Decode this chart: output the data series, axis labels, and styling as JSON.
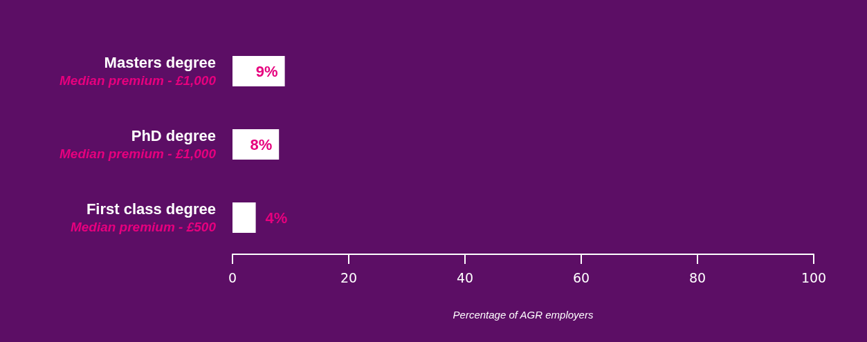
{
  "chart_data": {
    "type": "bar",
    "orientation": "horizontal",
    "xlabel": "Percentage of AGR employers",
    "categories": [
      "Masters degree\nMedian premium - £1,000",
      "PhD degree\nMedian premium - £1,000",
      "First class degree\nMedian premium - £500"
    ],
    "values": [
      9,
      8,
      4
    ],
    "value_labels": [
      "9%",
      "8%",
      "4%"
    ],
    "color": "#ffffff",
    "xlim": [
      0,
      100
    ],
    "xticks": [
      0,
      20,
      40,
      60,
      80,
      100
    ],
    "grid": false
  }
}
